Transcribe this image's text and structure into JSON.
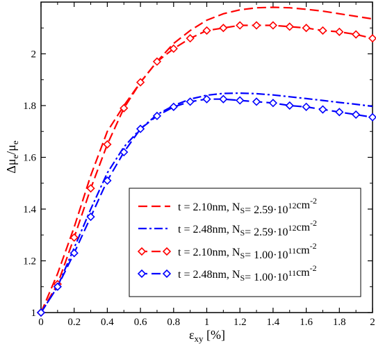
{
  "chart_data": {
    "type": "line",
    "xlabel": {
      "main": "ε",
      "sub": "xy",
      "suffix": " [%]"
    },
    "ylabel": {
      "part1": "Δμ",
      "sub1": "e",
      "part2": "/μ",
      "sub2": "e"
    },
    "xlim": [
      0,
      2
    ],
    "ylim": [
      1,
      2.2
    ],
    "xticks": [
      0,
      0.2,
      0.4,
      0.6,
      0.8,
      1,
      1.2,
      1.4,
      1.6,
      1.8,
      2
    ],
    "xtick_labels": [
      "0",
      "0.2",
      "0.4",
      "0.6",
      "0.8",
      "1",
      "1.2",
      "1.4",
      "1.6",
      "1.8",
      "2"
    ],
    "yticks": [
      1,
      1.2,
      1.4,
      1.6,
      1.8,
      2
    ],
    "ytick_labels": [
      "1",
      "1.2",
      "1.4",
      "1.6",
      "1.8",
      "2"
    ],
    "grid": false,
    "legend_position": "bottom-right",
    "series": [
      {
        "legend": {
          "t": "t = 2.10nm, N",
          "tsub": "S",
          "n": "= 2.59·10",
          "nsup": "12",
          "unit": "cm",
          "usup": "-2"
        },
        "color": "#ff0000",
        "dash": "dashed",
        "marker": "none",
        "x": [
          0,
          0.1,
          0.2,
          0.3,
          0.4,
          0.5,
          0.6,
          0.7,
          0.8,
          0.9,
          1.0,
          1.1,
          1.2,
          1.3,
          1.4,
          1.5,
          1.6,
          1.7,
          1.8,
          1.9,
          2.0
        ],
        "y": [
          1.0,
          1.15,
          1.33,
          1.53,
          1.7,
          1.8,
          1.89,
          1.97,
          2.04,
          2.09,
          2.13,
          2.155,
          2.17,
          2.178,
          2.18,
          2.178,
          2.172,
          2.165,
          2.155,
          2.145,
          2.135
        ]
      },
      {
        "legend": {
          "t": "t = 2.48nm, N",
          "tsub": "S",
          "n": "= 2.59·10",
          "nsup": "12",
          "unit": "cm",
          "usup": "-2"
        },
        "color": "#0000ff",
        "dash": "dashdot",
        "marker": "none",
        "x": [
          0,
          0.1,
          0.2,
          0.3,
          0.4,
          0.5,
          0.6,
          0.7,
          0.8,
          0.9,
          1.0,
          1.1,
          1.2,
          1.3,
          1.4,
          1.5,
          1.6,
          1.7,
          1.8,
          1.9,
          2.0
        ],
        "y": [
          1.0,
          1.1,
          1.25,
          1.4,
          1.54,
          1.64,
          1.71,
          1.765,
          1.8,
          1.825,
          1.84,
          1.847,
          1.848,
          1.846,
          1.841,
          1.834,
          1.827,
          1.82,
          1.812,
          1.805,
          1.797
        ]
      },
      {
        "legend": {
          "t": "t = 2.10nm, N",
          "tsub": "S",
          "n": "= 1.00·10",
          "nsup": "11",
          "unit": "cm",
          "usup": "-2"
        },
        "color": "#ff0000",
        "dash": "dashed",
        "marker": "diamond",
        "x": [
          0,
          0.1,
          0.2,
          0.3,
          0.4,
          0.5,
          0.6,
          0.7,
          0.8,
          0.9,
          1.0,
          1.1,
          1.2,
          1.3,
          1.4,
          1.5,
          1.6,
          1.7,
          1.8,
          1.9,
          2.0
        ],
        "y": [
          1.0,
          1.11,
          1.29,
          1.48,
          1.65,
          1.79,
          1.89,
          1.97,
          2.02,
          2.06,
          2.09,
          2.1,
          2.11,
          2.11,
          2.11,
          2.105,
          2.1,
          2.09,
          2.085,
          2.075,
          2.06
        ]
      },
      {
        "legend": {
          "t": "t = 2.48nm, N",
          "tsub": "S",
          "n": "= 1.00·10",
          "nsup": "11",
          "unit": "cm",
          "usup": "-2"
        },
        "color": "#0000ff",
        "dash": "dashed",
        "marker": "diamond",
        "x": [
          0,
          0.1,
          0.2,
          0.3,
          0.4,
          0.5,
          0.6,
          0.7,
          0.8,
          0.9,
          1.0,
          1.1,
          1.2,
          1.3,
          1.4,
          1.5,
          1.6,
          1.7,
          1.8,
          1.9,
          2.0
        ],
        "y": [
          1.0,
          1.1,
          1.23,
          1.37,
          1.51,
          1.62,
          1.71,
          1.76,
          1.795,
          1.815,
          1.825,
          1.825,
          1.82,
          1.815,
          1.81,
          1.8,
          1.795,
          1.785,
          1.775,
          1.765,
          1.755
        ]
      }
    ]
  }
}
